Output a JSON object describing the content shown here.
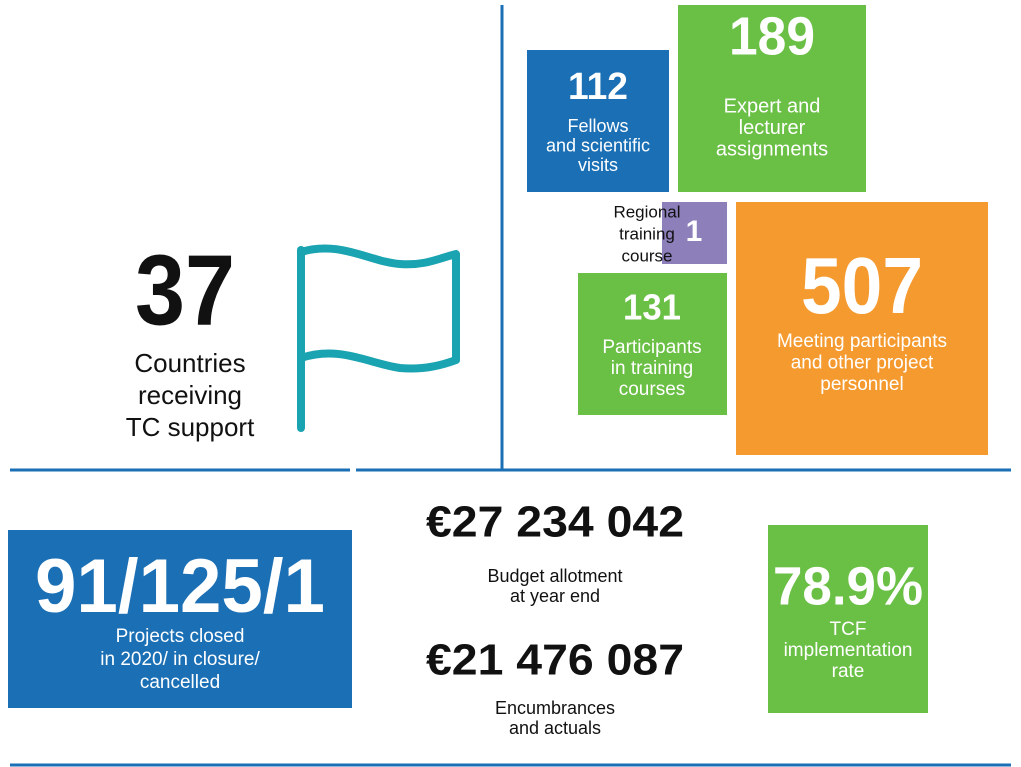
{
  "countries": {
    "value": "37",
    "label": [
      "Countries",
      "receiving",
      "TC support"
    ]
  },
  "fellows": {
    "value": "112",
    "label": [
      "Fellows",
      "and scientific",
      "visits"
    ]
  },
  "experts": {
    "value": "189",
    "label": [
      "Expert and",
      "lecturer",
      "assignments"
    ]
  },
  "regional": {
    "value": "1",
    "label": [
      "Regional",
      "training",
      "course"
    ]
  },
  "meeting": {
    "value": "507",
    "label": [
      "Meeting participants",
      "and other project",
      "personnel"
    ]
  },
  "participants": {
    "value": "131",
    "label": [
      "Participants",
      "in training",
      "courses"
    ]
  },
  "projects": {
    "value": "91/125/1",
    "label": [
      "Projects closed",
      "in 2020/ in closure/",
      "cancelled"
    ]
  },
  "budget": {
    "value": "€27 234 042",
    "label": [
      "Budget allotment",
      "at year end"
    ]
  },
  "encumbrances": {
    "value": "€21 476 087",
    "label": [
      "Encumbrances",
      "and actuals"
    ]
  },
  "tcf": {
    "value": "78.9%",
    "label": [
      "TCF",
      "implementation",
      "rate"
    ]
  }
}
